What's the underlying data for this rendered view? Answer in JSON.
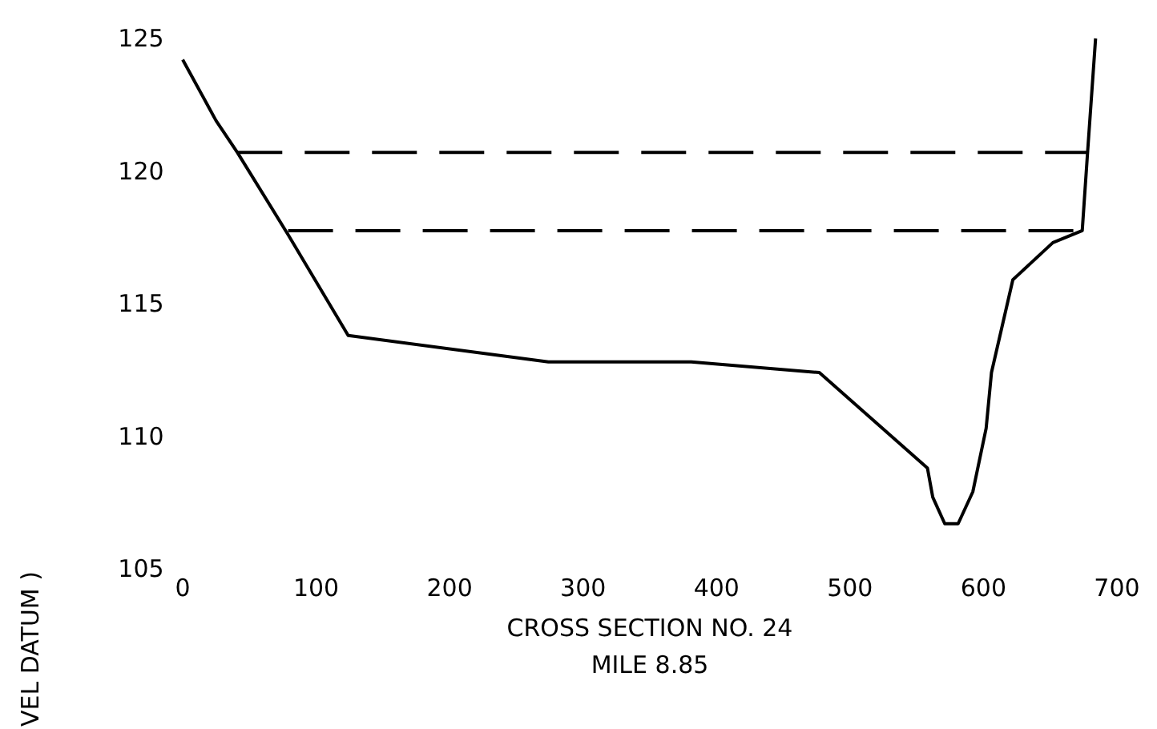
{
  "chart_data": {
    "type": "line",
    "xlabel": "CROSS SECTION NO. 24",
    "ylabel": "VEL DATUM )",
    "annotations": [
      "MILE 8.85"
    ],
    "xlim": [
      0,
      700
    ],
    "ylim": [
      105,
      125
    ],
    "xticks": [
      0,
      100,
      200,
      300,
      400,
      500,
      600,
      700
    ],
    "yticks": [
      105,
      110,
      115,
      120,
      125
    ],
    "grid": false,
    "series": [
      {
        "color": "#000000",
        "line_style": "solid",
        "x": [
          0,
          25,
          41,
          79,
          124,
          274,
          381,
          477,
          558,
          562,
          571,
          581,
          592,
          602,
          606,
          622,
          652,
          674,
          678,
          684
        ],
        "values": [
          124.2,
          121.9,
          120.7,
          117.6,
          113.8,
          112.8,
          112.8,
          112.4,
          108.8,
          107.7,
          106.7,
          106.7,
          107.9,
          110.3,
          112.4,
          115.9,
          117.3,
          117.75,
          120.7,
          125
        ]
      },
      {
        "color": "#000000",
        "line_style": "dashed",
        "x": [
          41,
          678
        ],
        "values": [
          120.7,
          120.7
        ]
      },
      {
        "color": "#000000",
        "line_style": "dashed",
        "x": [
          79,
          674
        ],
        "values": [
          117.75,
          117.75
        ]
      }
    ]
  }
}
